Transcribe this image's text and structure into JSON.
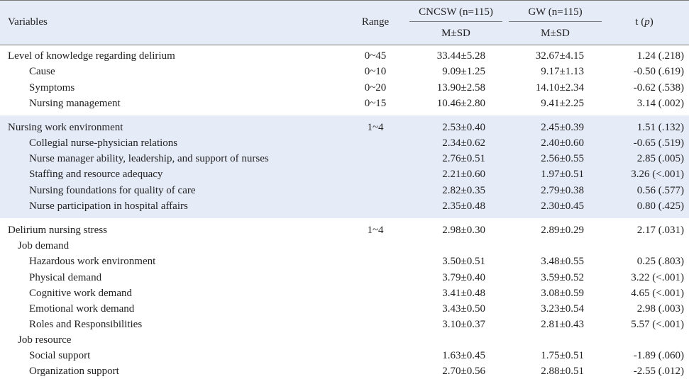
{
  "header": {
    "variables": "Variables",
    "range": "Range",
    "group1": "CNCSW (n=115)",
    "group2": "GW (n=115)",
    "msd": "M±SD",
    "t_label": "t (",
    "p_label": "p",
    "t_close": ")"
  },
  "rows": [
    {
      "label": "Level of knowledge regarding delirium",
      "range": "0~45",
      "g1": "33.44±5.28",
      "g2": "32.67±4.15",
      "t": "1.24 (.218)"
    },
    {
      "label": "Cause",
      "range": "0~10",
      "g1": "9.09±1.25",
      "g2": "9.17±1.13",
      "t": "-0.50 (.619)"
    },
    {
      "label": "Symptoms",
      "range": "0~20",
      "g1": "13.90±2.58",
      "g2": "14.10±2.34",
      "t": "-0.62 (.538)"
    },
    {
      "label": "Nursing management",
      "range": "0~15",
      "g1": "10.46±2.80",
      "g2": "9.41±2.25",
      "t": "3.14 (.002)"
    },
    {
      "label": "Nursing work environment",
      "range": "1~4",
      "g1": "2.53±0.40",
      "g2": "2.45±0.39",
      "t": "1.51 (.132)"
    },
    {
      "label": "Collegial nurse-physician relations",
      "range": "",
      "g1": "2.34±0.62",
      "g2": "2.40±0.60",
      "t": "-0.65 (.519)"
    },
    {
      "label": "Nurse manager ability, leadership, and support of nurses",
      "range": "",
      "g1": "2.76±0.51",
      "g2": "2.56±0.55",
      "t": "2.85 (.005)"
    },
    {
      "label": "Staffing and resource adequacy",
      "range": "",
      "g1": "2.21±0.60",
      "g2": "1.97±0.51",
      "t": "3.26 (<.001)"
    },
    {
      "label": "Nursing foundations for quality of care",
      "range": "",
      "g1": "2.82±0.35",
      "g2": "2.79±0.38",
      "t": "0.56 (.577)"
    },
    {
      "label": "Nurse participation in hospital affairs",
      "range": "",
      "g1": "2.35±0.48",
      "g2": "2.30±0.45",
      "t": "0.80 (.425)"
    },
    {
      "label": "Delirium nursing stress",
      "range": "1~4",
      "g1": "2.98±0.30",
      "g2": "2.89±0.29",
      "t": "2.17 (.031)"
    },
    {
      "label": "Job demand",
      "range": "",
      "g1": "",
      "g2": "",
      "t": ""
    },
    {
      "label": "Hazardous work environment",
      "range": "",
      "g1": "3.50±0.51",
      "g2": "3.48±0.55",
      "t": "0.25 (.803)"
    },
    {
      "label": "Physical demand",
      "range": "",
      "g1": "3.79±0.40",
      "g2": "3.59±0.52",
      "t": "3.22 (<.001)"
    },
    {
      "label": "Cognitive work demand",
      "range": "",
      "g1": "3.41±0.48",
      "g2": "3.08±0.59",
      "t": "4.65 (<.001)"
    },
    {
      "label": "Emotional work demand",
      "range": "",
      "g1": "3.43±0.50",
      "g2": "3.23±0.54",
      "t": "2.98 (.003)"
    },
    {
      "label": "Roles and Responsibilities",
      "range": "",
      "g1": "3.10±0.37",
      "g2": "2.81±0.43",
      "t": "5.57 (<.001)"
    },
    {
      "label": "Job resource",
      "range": "",
      "g1": "",
      "g2": "",
      "t": ""
    },
    {
      "label": "Social support",
      "range": "",
      "g1": "1.63±0.45",
      "g2": "1.75±0.51",
      "t": "-1.89 (.060)"
    },
    {
      "label": "Organization support",
      "range": "",
      "g1": "2.70±0.56",
      "g2": "2.88±0.51",
      "t": "-2.55 (.012)"
    }
  ]
}
